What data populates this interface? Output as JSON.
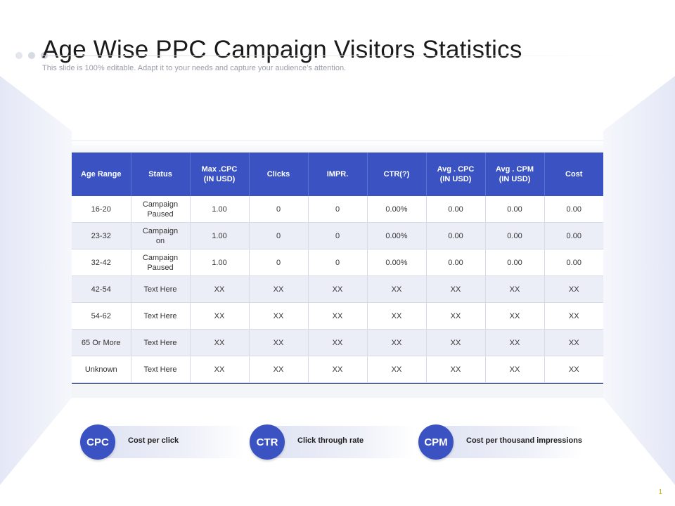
{
  "slide": {
    "title": "Age Wise PPC Campaign Visitors Statistics",
    "subtitle": "This slide is 100% editable. Adapt it to your needs and capture your audience’s attention.",
    "page_number": "1"
  },
  "table": {
    "headers": [
      "Age Range",
      "Status",
      "Max .CPC\n(IN USD)",
      "Clicks",
      "IMPR.",
      "CTR(?)",
      "Avg . CPC\n(IN USD)",
      "Avg . CPM\n(IN USD)",
      "Cost"
    ],
    "rows": [
      [
        "16-20",
        "Campaign\nPaused",
        "1.00",
        "0",
        "0",
        "0.00%",
        "0.00",
        "0.00",
        "0.00"
      ],
      [
        "23-32",
        "Campaign\non",
        "1.00",
        "0",
        "0",
        "0.00%",
        "0.00",
        "0.00",
        "0.00"
      ],
      [
        "32-42",
        "Campaign\nPaused",
        "1.00",
        "0",
        "0",
        "0.00%",
        "0.00",
        "0.00",
        "0.00"
      ],
      [
        "42-54",
        "Text Here",
        "XX",
        "XX",
        "XX",
        "XX",
        "XX",
        "XX",
        "XX"
      ],
      [
        "54-62",
        "Text Here",
        "XX",
        "XX",
        "XX",
        "XX",
        "XX",
        "XX",
        "XX"
      ],
      [
        "65 Or More",
        "Text Here",
        "XX",
        "XX",
        "XX",
        "XX",
        "XX",
        "XX",
        "XX"
      ],
      [
        "Unknown",
        "Text Here",
        "XX",
        "XX",
        "XX",
        "XX",
        "XX",
        "XX",
        "XX"
      ]
    ]
  },
  "legend": [
    {
      "abbr": "CPC",
      "label": "Cost per click"
    },
    {
      "abbr": "CTR",
      "label": "Click through rate"
    },
    {
      "abbr": "CPM",
      "label": "Cost per thousand impressions"
    }
  ],
  "colors": {
    "accent": "#3a52c2",
    "row_alt": "#eceef7",
    "background": "#ffffff"
  }
}
